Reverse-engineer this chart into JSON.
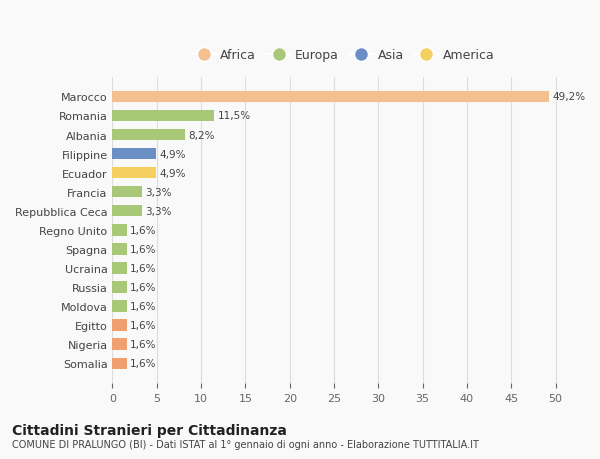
{
  "categories": [
    "Somalia",
    "Nigeria",
    "Egitto",
    "Moldova",
    "Russia",
    "Ucraina",
    "Spagna",
    "Regno Unito",
    "Repubblica Ceca",
    "Francia",
    "Ecuador",
    "Filippine",
    "Albania",
    "Romania",
    "Marocco"
  ],
  "values": [
    1.6,
    1.6,
    1.6,
    1.6,
    1.6,
    1.6,
    1.6,
    1.6,
    3.3,
    3.3,
    4.9,
    4.9,
    8.2,
    11.5,
    49.2
  ],
  "colors": [
    "#f0a070",
    "#f0a070",
    "#f0a070",
    "#a8c878",
    "#a8c878",
    "#a8c878",
    "#a8c878",
    "#a8c878",
    "#a8c878",
    "#a8c878",
    "#f5d060",
    "#6b8fc4",
    "#a8c878",
    "#a8c878",
    "#f5c090"
  ],
  "labels": [
    "1,6%",
    "1,6%",
    "1,6%",
    "1,6%",
    "1,6%",
    "1,6%",
    "1,6%",
    "1,6%",
    "3,3%",
    "3,3%",
    "4,9%",
    "4,9%",
    "8,2%",
    "11,5%",
    "49,2%"
  ],
  "legend": [
    {
      "label": "Africa",
      "color": "#f5c090"
    },
    {
      "label": "Europa",
      "color": "#a8c878"
    },
    {
      "label": "Asia",
      "color": "#6b8fc4"
    },
    {
      "label": "America",
      "color": "#f5d060"
    }
  ],
  "xlim": [
    0,
    52
  ],
  "xticks": [
    0,
    5,
    10,
    15,
    20,
    25,
    30,
    35,
    40,
    45,
    50
  ],
  "title": "Cittadini Stranieri per Cittadinanza",
  "subtitle": "COMUNE DI PRALUNGO (BI) - Dati ISTAT al 1° gennaio di ogni anno - Elaborazione TUTTITALIA.IT",
  "bg_color": "#f9f9f9",
  "grid_color": "#dddddd",
  "bar_height": 0.6
}
